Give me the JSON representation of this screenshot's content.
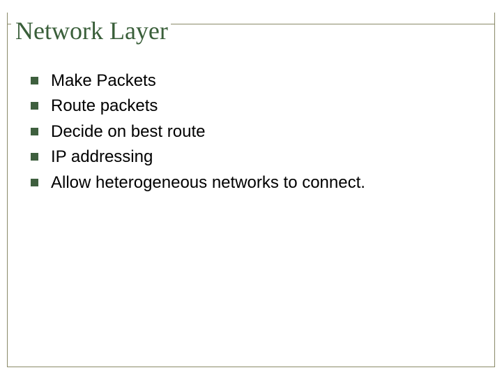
{
  "slide": {
    "title": "Network Layer",
    "title_color": "#3a5f3a",
    "title_fontsize": 36,
    "title_fontfamily": "Times New Roman",
    "border_color": "#8a8a68",
    "background_color": "#ffffff",
    "bullets": [
      {
        "text": "Make Packets"
      },
      {
        "text": "Route packets"
      },
      {
        "text": "Decide on best route"
      },
      {
        "text": "IP addressing"
      },
      {
        "text": "Allow heterogeneous networks to connect."
      }
    ],
    "bullet_marker_color": "#3e5f3e",
    "bullet_marker_size": 11,
    "bullet_text_color": "#000000",
    "bullet_fontsize": 24
  }
}
